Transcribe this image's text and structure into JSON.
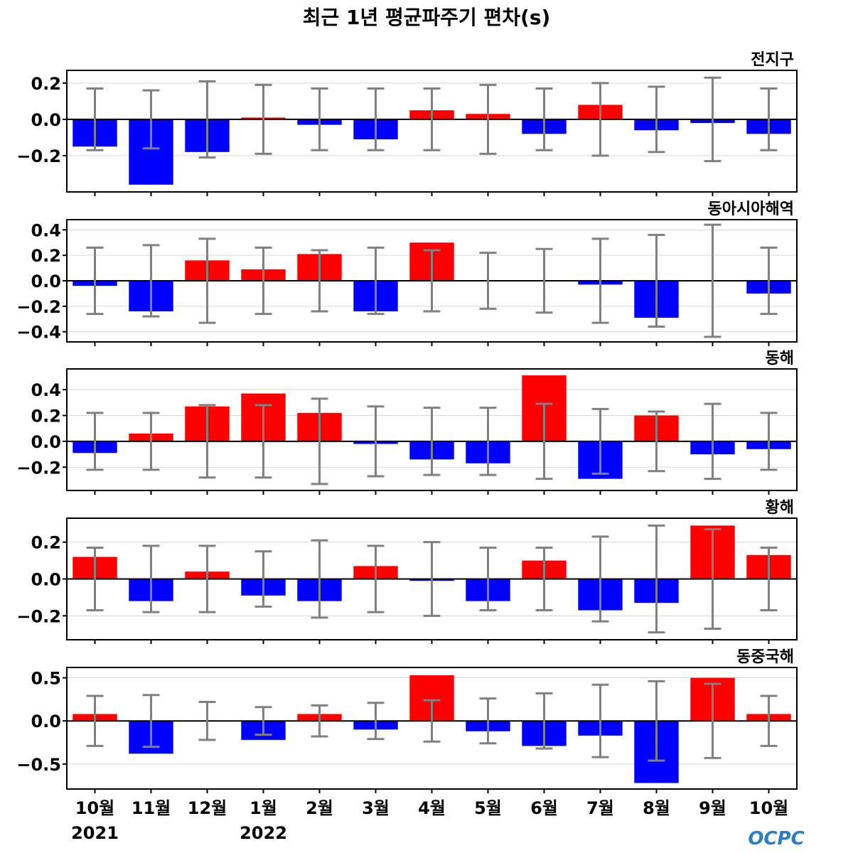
{
  "title": "최근 1년 평균파주기 편차(s)",
  "logo": "OCPC",
  "colors": {
    "positive": "#ff0000",
    "negative": "#0000ff",
    "errorbar": "#808080",
    "zero_line": "#000000",
    "grid": "#d9d9d9"
  },
  "x_labels": [
    "10월",
    "11월",
    "12월",
    "1월",
    "2월",
    "3월",
    "4월",
    "5월",
    "6월",
    "7월",
    "8월",
    "9월",
    "10월"
  ],
  "year_labels": [
    {
      "text": "2021",
      "index": 0
    },
    {
      "text": "2022",
      "index": 3
    }
  ],
  "chart_data": [
    {
      "type": "bar",
      "title": "전지구",
      "categories": [
        "10월",
        "11월",
        "12월",
        "1월",
        "2월",
        "3월",
        "4월",
        "5월",
        "6월",
        "7월",
        "8월",
        "9월",
        "10월"
      ],
      "values": [
        -0.15,
        -0.36,
        -0.18,
        0.01,
        -0.03,
        -0.11,
        0.05,
        0.03,
        -0.08,
        0.08,
        -0.06,
        -0.02,
        -0.08
      ],
      "error": [
        0.17,
        0.16,
        0.21,
        0.19,
        0.17,
        0.17,
        0.17,
        0.19,
        0.17,
        0.2,
        0.18,
        0.23,
        0.17
      ],
      "ylim": [
        -0.4,
        0.27
      ],
      "yticks": [
        0.2,
        0.0,
        -0.2
      ],
      "ytick_labels": [
        "0.2",
        "0.0",
        "−0.2"
      ],
      "grid": true
    },
    {
      "type": "bar",
      "title": "동아시아해역",
      "categories": [
        "10월",
        "11월",
        "12월",
        "1월",
        "2월",
        "3월",
        "4월",
        "5월",
        "6월",
        "7월",
        "8월",
        "9월",
        "10월"
      ],
      "values": [
        -0.04,
        -0.24,
        0.16,
        0.09,
        0.21,
        -0.24,
        0.3,
        0.0,
        0.0,
        -0.03,
        -0.29,
        0.0,
        -0.1
      ],
      "error": [
        0.26,
        0.28,
        0.33,
        0.26,
        0.24,
        0.26,
        0.24,
        0.22,
        0.25,
        0.33,
        0.36,
        0.44,
        0.26
      ],
      "ylim": [
        -0.48,
        0.48
      ],
      "yticks": [
        0.4,
        0.2,
        0.0,
        -0.2,
        -0.4
      ],
      "ytick_labels": [
        "0.4",
        "0.2",
        "0.0",
        "−0.2",
        "−0.4"
      ],
      "grid": true
    },
    {
      "type": "bar",
      "title": "동해",
      "categories": [
        "10월",
        "11월",
        "12월",
        "1월",
        "2월",
        "3월",
        "4월",
        "5월",
        "6월",
        "7월",
        "8월",
        "9월",
        "10월"
      ],
      "values": [
        -0.09,
        0.06,
        0.27,
        0.37,
        0.22,
        -0.02,
        -0.14,
        -0.17,
        0.51,
        -0.29,
        0.2,
        -0.1,
        -0.06
      ],
      "error": [
        0.22,
        0.22,
        0.28,
        0.28,
        0.33,
        0.27,
        0.26,
        0.26,
        0.29,
        0.25,
        0.23,
        0.29,
        0.22
      ],
      "ylim": [
        -0.38,
        0.56
      ],
      "yticks": [
        0.4,
        0.2,
        0.0,
        -0.2
      ],
      "ytick_labels": [
        "0.4",
        "0.2",
        "0.0",
        "−0.2"
      ],
      "grid": true
    },
    {
      "type": "bar",
      "title": "황해",
      "categories": [
        "10월",
        "11월",
        "12월",
        "1월",
        "2월",
        "3월",
        "4월",
        "5월",
        "6월",
        "7월",
        "8월",
        "9월",
        "10월"
      ],
      "values": [
        0.12,
        -0.12,
        0.04,
        -0.09,
        -0.12,
        0.07,
        -0.01,
        -0.12,
        0.1,
        -0.17,
        -0.13,
        0.29,
        0.13
      ],
      "error": [
        0.17,
        0.18,
        0.18,
        0.15,
        0.21,
        0.18,
        0.2,
        0.17,
        0.17,
        0.23,
        0.29,
        0.27,
        0.17
      ],
      "ylim": [
        -0.33,
        0.33
      ],
      "yticks": [
        0.2,
        0.0,
        -0.2
      ],
      "ytick_labels": [
        "0.2",
        "0.0",
        "−0.2"
      ],
      "grid": true
    },
    {
      "type": "bar",
      "title": "동중국해",
      "categories": [
        "10월",
        "11월",
        "12월",
        "1월",
        "2월",
        "3월",
        "4월",
        "5월",
        "6월",
        "7월",
        "8월",
        "9월",
        "10월"
      ],
      "values": [
        0.08,
        -0.38,
        0.0,
        -0.22,
        0.08,
        -0.1,
        0.53,
        -0.12,
        -0.29,
        -0.17,
        -0.72,
        0.5,
        0.08
      ],
      "error": [
        0.29,
        0.3,
        0.22,
        0.16,
        0.18,
        0.21,
        0.24,
        0.26,
        0.32,
        0.42,
        0.46,
        0.43,
        0.29
      ],
      "ylim": [
        -0.79,
        0.62
      ],
      "yticks": [
        0.5,
        0.0,
        -0.5
      ],
      "ytick_labels": [
        "0.5",
        "0.0",
        "−0.5"
      ],
      "grid": true
    }
  ]
}
